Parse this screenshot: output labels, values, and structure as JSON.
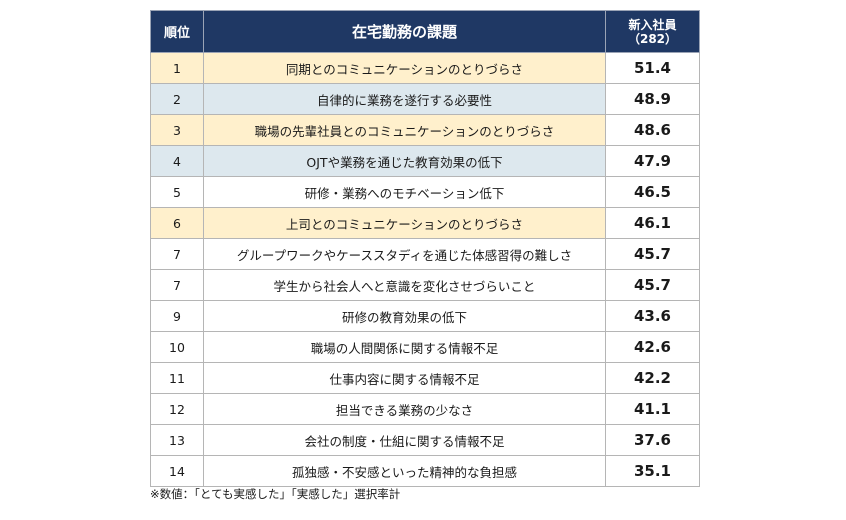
{
  "table": {
    "headers": {
      "rank": "順位",
      "issue": "在宅勤務の課題",
      "score_line1": "新入社員",
      "score_line2": "（282）"
    },
    "rows": [
      {
        "rank": "1",
        "issue": "同期とのコミュニケーションのとりづらさ",
        "score": "51.4",
        "highlight": "yellow"
      },
      {
        "rank": "2",
        "issue": "自律的に業務を遂行する必要性",
        "score": "48.9",
        "highlight": "blue"
      },
      {
        "rank": "3",
        "issue": "職場の先輩社員とのコミュニケーションのとりづらさ",
        "score": "48.6",
        "highlight": "yellow"
      },
      {
        "rank": "4",
        "issue": "OJTや業務を通じた教育効果の低下",
        "score": "47.9",
        "highlight": "blue"
      },
      {
        "rank": "5",
        "issue": "研修・業務へのモチベーション低下",
        "score": "46.5",
        "highlight": "none"
      },
      {
        "rank": "6",
        "issue": "上司とのコミュニケーションのとりづらさ",
        "score": "46.1",
        "highlight": "yellow"
      },
      {
        "rank": "7",
        "issue": "グループワークやケーススタディを通じた体感習得の難しさ",
        "score": "45.7",
        "highlight": "none"
      },
      {
        "rank": "7",
        "issue": "学生から社会人へと意識を変化させづらいこと",
        "score": "45.7",
        "highlight": "none"
      },
      {
        "rank": "9",
        "issue": "研修の教育効果の低下",
        "score": "43.6",
        "highlight": "none"
      },
      {
        "rank": "10",
        "issue": "職場の人間関係に関する情報不足",
        "score": "42.6",
        "highlight": "none"
      },
      {
        "rank": "11",
        "issue": "仕事内容に関する情報不足",
        "score": "42.2",
        "highlight": "none"
      },
      {
        "rank": "12",
        "issue": "担当できる業務の少なさ",
        "score": "41.1",
        "highlight": "none"
      },
      {
        "rank": "13",
        "issue": "会社の制度・仕組に関する情報不足",
        "score": "37.6",
        "highlight": "none"
      },
      {
        "rank": "14",
        "issue": "孤独感・不安感といった精神的な負担感",
        "score": "35.1",
        "highlight": "none"
      }
    ]
  },
  "footnote": "※数値：「とても実感した」「実感した」選択率計",
  "colors": {
    "header_bg": "#1f3864",
    "highlight_yellow": "#fff0cc",
    "highlight_blue": "#dde8ee"
  }
}
